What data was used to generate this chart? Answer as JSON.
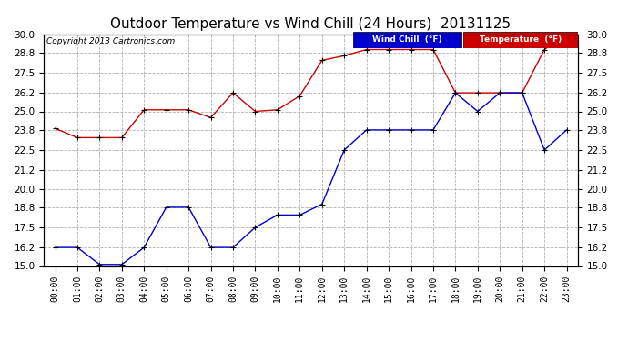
{
  "title": "Outdoor Temperature vs Wind Chill (24 Hours)  20131125",
  "copyright": "Copyright 2013 Cartronics.com",
  "hours": [
    "00:00",
    "01:00",
    "02:00",
    "03:00",
    "04:00",
    "05:00",
    "06:00",
    "07:00",
    "08:00",
    "09:00",
    "10:00",
    "11:00",
    "12:00",
    "13:00",
    "14:00",
    "15:00",
    "16:00",
    "17:00",
    "18:00",
    "19:00",
    "20:00",
    "21:00",
    "22:00",
    "23:00"
  ],
  "temperature": [
    23.9,
    23.3,
    23.3,
    23.3,
    25.1,
    25.1,
    25.1,
    24.6,
    26.2,
    25.0,
    25.1,
    26.0,
    28.3,
    28.6,
    29.0,
    29.0,
    29.0,
    29.0,
    26.2,
    26.2,
    26.2,
    26.2,
    29.0,
    30.0
  ],
  "wind_chill": [
    16.2,
    16.2,
    15.1,
    15.1,
    16.2,
    18.8,
    18.8,
    16.2,
    16.2,
    17.5,
    18.3,
    18.3,
    19.0,
    22.5,
    23.8,
    23.8,
    23.8,
    23.8,
    26.2,
    25.0,
    26.2,
    26.2,
    22.5,
    23.8
  ],
  "ylim": [
    15.0,
    30.0
  ],
  "yticks": [
    15.0,
    16.2,
    17.5,
    18.8,
    20.0,
    21.2,
    22.5,
    23.8,
    25.0,
    26.2,
    27.5,
    28.8,
    30.0
  ],
  "temp_color": "#cc0000",
  "wind_chill_color": "#0000cc",
  "marker_color": "black",
  "bg_color": "#ffffff",
  "grid_color": "#b0b0b0",
  "title_fontsize": 11,
  "legend_wind_label": "Wind Chill  (°F)",
  "legend_temp_label": "Temperature  (°F)"
}
